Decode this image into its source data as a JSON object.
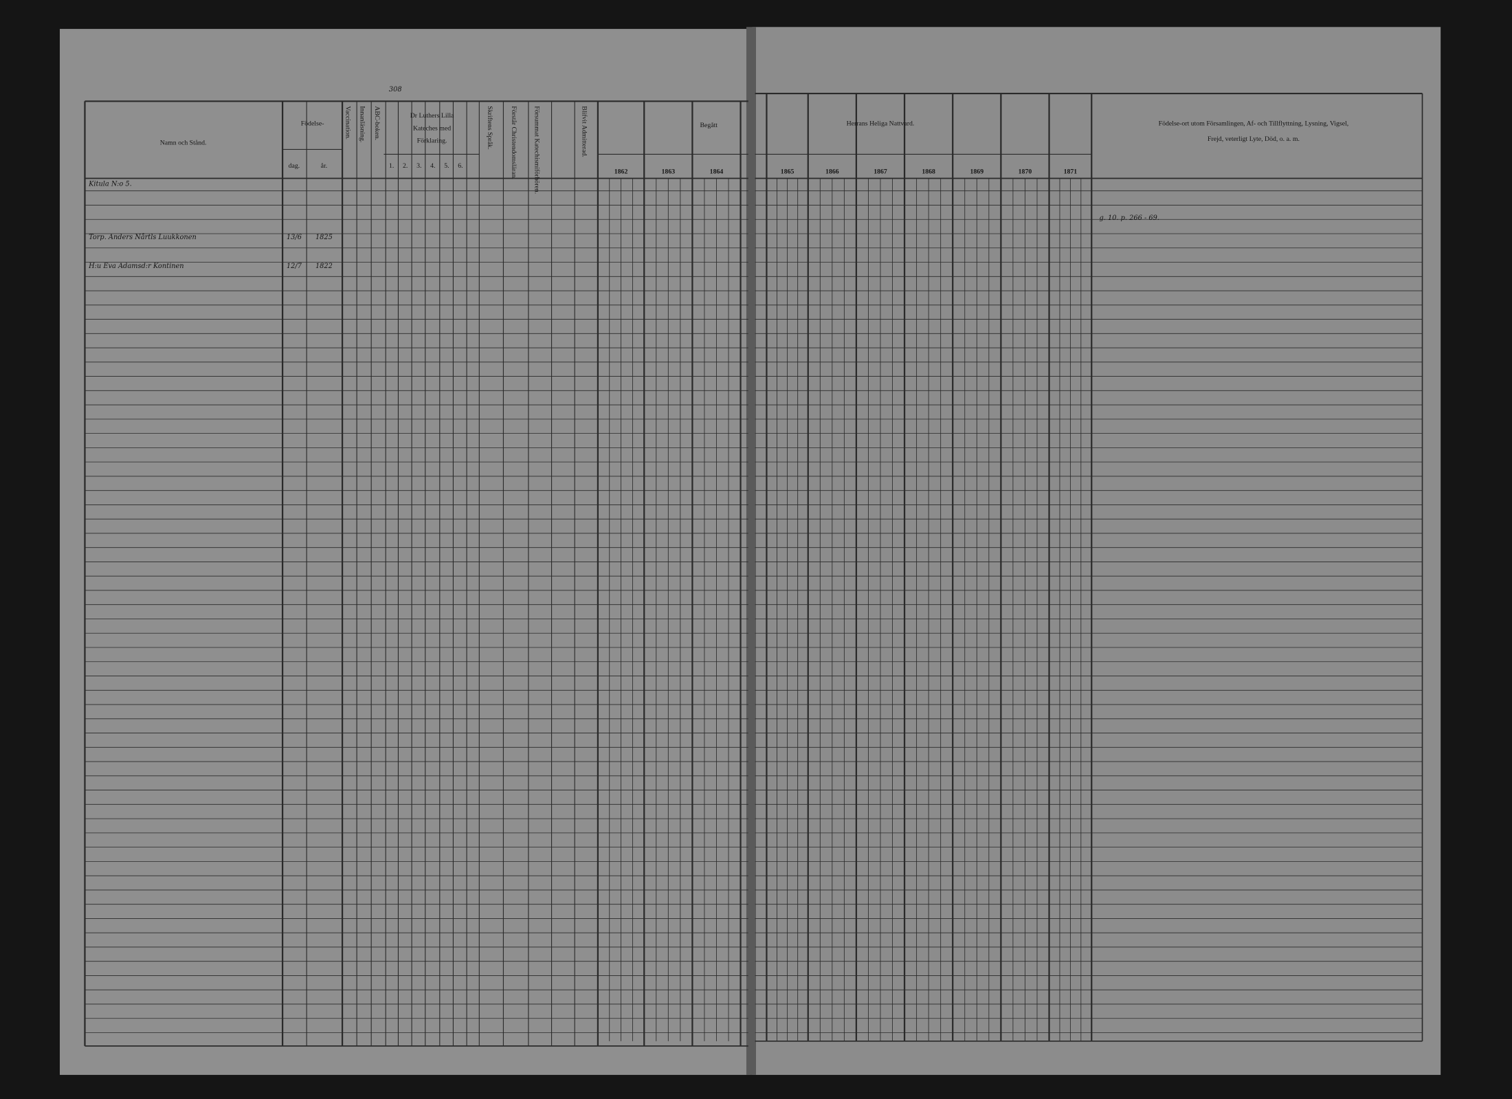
{
  "page_number": "308",
  "left_header": {
    "name_col": "Namn och Stånd.",
    "birth": "Födelse-",
    "birth_day": "dag.",
    "birth_year": "år.",
    "vaccination": "Vaccination.",
    "reading": "Innanläsning.",
    "abc": "ABC-boken.",
    "catechism": [
      "Dr Luthers Lilla",
      "Kateches med",
      "Förklaring."
    ],
    "catechism_parts": [
      "1.",
      "2.",
      "3.",
      "4.",
      "5.",
      "6."
    ],
    "scripture": "Skriftens Språk.",
    "understands": "Förstår Christendomsläran.",
    "missed": "Försummat Katechismiförhören.",
    "admitted": "Blifvit Admitterad.",
    "begatt": "Begått"
  },
  "right_header": {
    "communion": "Herrans Heliga Nattvard.",
    "remarks": [
      "Födelse-ort utom Församlingen, Af- och Tillflyttning, Lysning, Vigsel,",
      "Frejd, veterligt Lyte, Död, o. a. m."
    ]
  },
  "years": [
    "1862",
    "1863",
    "1864",
    "1865",
    "1866",
    "1867",
    "1868",
    "1869",
    "1870",
    "1871"
  ],
  "household": "Kitula N:o 5.",
  "persons": [
    {
      "name": "Torp. Anders Nårtls Luukkonen",
      "day": "13/6",
      "year": "1825",
      "remark": "g. 10. p. 266 - 69."
    },
    {
      "name": "H:u Eva Adamsd:r Kontinen",
      "day": "12/7",
      "year": "1822"
    }
  ]
}
